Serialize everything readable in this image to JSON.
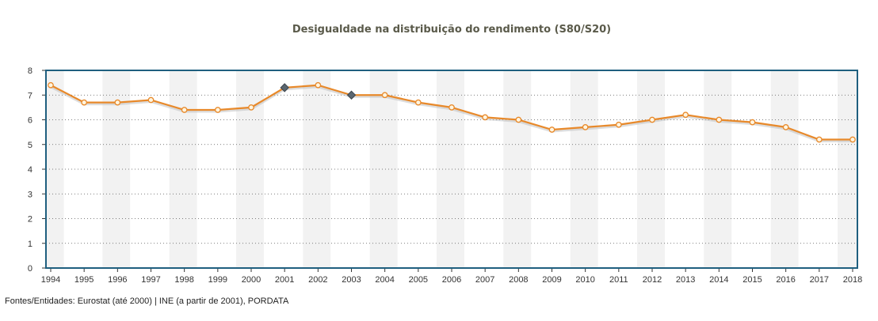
{
  "chart_data": {
    "type": "line",
    "title": "Desigualdade na distribuição do rendimento (S80/S20)",
    "x": [
      "1994",
      "1995",
      "1996",
      "1997",
      "1998",
      "1999",
      "2000",
      "2001",
      "2002",
      "2003",
      "2004",
      "2005",
      "2006",
      "2007",
      "2008",
      "2009",
      "2010",
      "2011",
      "2012",
      "2013",
      "2014",
      "2015",
      "2016",
      "2017",
      "2018"
    ],
    "series": [
      {
        "values": [
          7.4,
          6.7,
          6.7,
          6.8,
          6.4,
          6.4,
          6.5,
          7.3,
          7.4,
          7.0,
          7.0,
          6.7,
          6.5,
          6.1,
          6.0,
          5.6,
          5.7,
          5.8,
          6.0,
          6.2,
          6.0,
          5.9,
          5.7,
          5.2,
          5.2
        ]
      }
    ],
    "highlighted_points": [
      "2001",
      "2003"
    ],
    "ylim": [
      0,
      8
    ],
    "yticks": [
      0,
      1,
      2,
      3,
      4,
      5,
      6,
      7,
      8
    ],
    "grid": true,
    "colors": {
      "line": "#e8892a",
      "marker_fill": "#fff5e0",
      "highlight": "#5a6670",
      "frame": "#1f5f7f",
      "band": "#f2f2f2"
    }
  },
  "source": "Fontes/Entidades: Eurostat (até 2000) | INE (a partir de 2001), PORDATA"
}
